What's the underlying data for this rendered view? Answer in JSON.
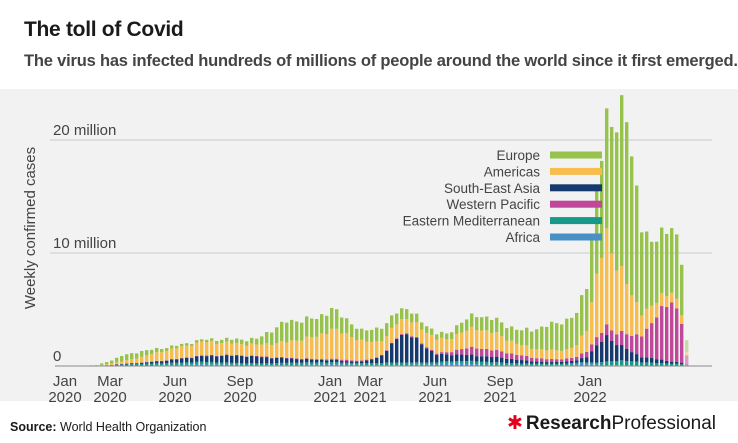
{
  "title": "The toll of Covid",
  "subtitle": "The virus has infected hundreds of millions of people around the world since it first emerged.",
  "source_label": "Source:",
  "source_text": "World Health Organization",
  "brand": {
    "bold": "Research",
    "regular": "Professional"
  },
  "chart_data": {
    "type": "bar",
    "stacked": true,
    "ylabel": "Weekly confirmed cases",
    "y_ticks": [
      {
        "value": 0,
        "label": "0"
      },
      {
        "value": 10000000,
        "label": "10 million"
      },
      {
        "value": 20000000,
        "label": "20 million"
      }
    ],
    "ylim": [
      0,
      23000000
    ],
    "x_ticks": [
      {
        "week": 0,
        "line1": "Jan",
        "line2": "2020"
      },
      {
        "week": 9,
        "line1": "Mar",
        "line2": "2020"
      },
      {
        "week": 22,
        "line1": "Jun",
        "line2": "2020"
      },
      {
        "week": 35,
        "line1": "Sep",
        "line2": "2020"
      },
      {
        "week": 53,
        "line1": "Jan",
        "line2": "2021"
      },
      {
        "week": 61,
        "line1": "Mar",
        "line2": "2021"
      },
      {
        "week": 74,
        "line1": "Jun",
        "line2": "2021"
      },
      {
        "week": 87,
        "line1": "Sep",
        "line2": "2021"
      },
      {
        "week": 105,
        "line1": "Jan",
        "line2": "2022"
      }
    ],
    "n_weeks": 124,
    "legend_position": "top-center",
    "series": [
      {
        "name": "Africa",
        "color": "#4a90c8"
      },
      {
        "name": "Eastern Mediterranean",
        "color": "#17998a"
      },
      {
        "name": "South-East Asia",
        "color": "#163a70"
      },
      {
        "name": "Western Pacific",
        "color": "#c0489a"
      },
      {
        "name": "Americas",
        "color": "#f7bd4f"
      },
      {
        "name": "Europe",
        "color": "#97c24c"
      }
    ],
    "legend_order": [
      "Europe",
      "Americas",
      "South-East Asia",
      "Western Pacific",
      "Eastern Mediterranean",
      "Africa"
    ],
    "keyframes_note_units": "millions of weekly confirmed cases",
    "keyframes": [
      [
        0,
        0,
        0,
        0,
        0,
        0,
        0
      ],
      [
        5,
        0,
        0,
        0,
        0.02,
        0.02,
        0.03
      ],
      [
        8,
        0.01,
        0.05,
        0.02,
        0.03,
        0.1,
        0.3
      ],
      [
        10,
        0.02,
        0.1,
        0.05,
        0.03,
        0.2,
        0.5
      ],
      [
        14,
        0.03,
        0.15,
        0.1,
        0.03,
        0.5,
        0.5
      ],
      [
        18,
        0.06,
        0.18,
        0.2,
        0.04,
        0.8,
        0.3
      ],
      [
        22,
        0.1,
        0.2,
        0.35,
        0.04,
        1.0,
        0.2
      ],
      [
        26,
        0.15,
        0.22,
        0.5,
        0.05,
        1.2,
        0.2
      ],
      [
        30,
        0.12,
        0.2,
        0.6,
        0.05,
        1.1,
        0.3
      ],
      [
        34,
        0.1,
        0.15,
        0.65,
        0.05,
        1.0,
        0.4
      ],
      [
        37,
        0.08,
        0.15,
        0.6,
        0.05,
        1.0,
        0.5
      ],
      [
        40,
        0.07,
        0.16,
        0.5,
        0.05,
        1.2,
        1.2
      ],
      [
        43,
        0.08,
        0.2,
        0.4,
        0.06,
        1.4,
        1.8
      ],
      [
        46,
        0.1,
        0.2,
        0.3,
        0.07,
        1.7,
        1.7
      ],
      [
        49,
        0.12,
        0.2,
        0.22,
        0.08,
        2.0,
        1.6
      ],
      [
        52,
        0.17,
        0.17,
        0.2,
        0.1,
        2.6,
        1.8
      ],
      [
        55,
        0.13,
        0.15,
        0.15,
        0.12,
        2.3,
        1.3
      ],
      [
        58,
        0.09,
        0.15,
        0.15,
        0.08,
        1.7,
        0.9
      ],
      [
        61,
        0.07,
        0.18,
        0.45,
        0.06,
        1.4,
        1.2
      ],
      [
        63,
        0.07,
        0.22,
        1.0,
        0.06,
        1.2,
        1.1
      ],
      [
        65,
        0.08,
        0.22,
        2.2,
        0.07,
        1.3,
        1.0
      ],
      [
        67,
        0.09,
        0.22,
        2.6,
        0.08,
        1.3,
        0.9
      ],
      [
        69,
        0.1,
        0.2,
        2.0,
        0.09,
        1.2,
        0.7
      ],
      [
        71,
        0.12,
        0.18,
        1.3,
        0.1,
        1.3,
        0.6
      ],
      [
        73,
        0.15,
        0.18,
        0.7,
        0.12,
        1.3,
        0.5
      ],
      [
        75,
        0.2,
        0.2,
        0.6,
        0.18,
        1.1,
        0.5
      ],
      [
        78,
        0.2,
        0.24,
        0.6,
        0.5,
        1.5,
        0.9
      ],
      [
        81,
        0.15,
        0.26,
        0.5,
        0.7,
        1.7,
        1.2
      ],
      [
        84,
        0.1,
        0.23,
        0.5,
        0.6,
        1.6,
        1.2
      ],
      [
        87,
        0.08,
        0.2,
        0.4,
        0.5,
        1.2,
        1.2
      ],
      [
        90,
        0.05,
        0.17,
        0.3,
        0.4,
        0.9,
        1.3
      ],
      [
        93,
        0.05,
        0.15,
        0.2,
        0.3,
        0.8,
        1.8
      ],
      [
        96,
        0.05,
        0.13,
        0.15,
        0.25,
        0.8,
        2.3
      ],
      [
        99,
        0.08,
        0.13,
        0.2,
        0.25,
        0.8,
        2.6
      ],
      [
        101,
        0.17,
        0.13,
        0.2,
        0.3,
        1.0,
        2.8
      ],
      [
        103,
        0.2,
        0.14,
        0.5,
        0.5,
        2.0,
        4.0
      ],
      [
        105,
        0.12,
        0.18,
        1.5,
        0.7,
        5.5,
        7.5
      ],
      [
        107,
        0.08,
        0.3,
        2.2,
        0.9,
        8.0,
        10.0
      ],
      [
        109,
        0.07,
        0.4,
        1.5,
        1.0,
        6.0,
        13.0
      ],
      [
        110,
        0.06,
        0.42,
        1.3,
        1.2,
        5.5,
        14.5
      ],
      [
        111,
        0.05,
        0.4,
        1.1,
        1.3,
        4.5,
        14.5
      ],
      [
        112,
        0.05,
        0.35,
        0.8,
        1.4,
        3.5,
        12.0
      ],
      [
        114,
        0.04,
        0.3,
        0.5,
        2.0,
        2.0,
        8.0
      ],
      [
        116,
        0.04,
        0.25,
        0.4,
        3.0,
        1.5,
        5.5
      ],
      [
        118,
        0.04,
        0.2,
        0.3,
        4.5,
        1.1,
        5.5
      ],
      [
        120,
        0.04,
        0.16,
        0.2,
        5.5,
        0.9,
        6.0
      ],
      [
        121,
        0.04,
        0.15,
        0.15,
        4.5,
        0.8,
        5.4
      ],
      [
        122,
        0.03,
        0.12,
        0.12,
        3.5,
        0.8,
        4.5
      ],
      [
        123,
        0.02,
        0.06,
        0.05,
        0.8,
        0.3,
        1.0
      ]
    ]
  }
}
